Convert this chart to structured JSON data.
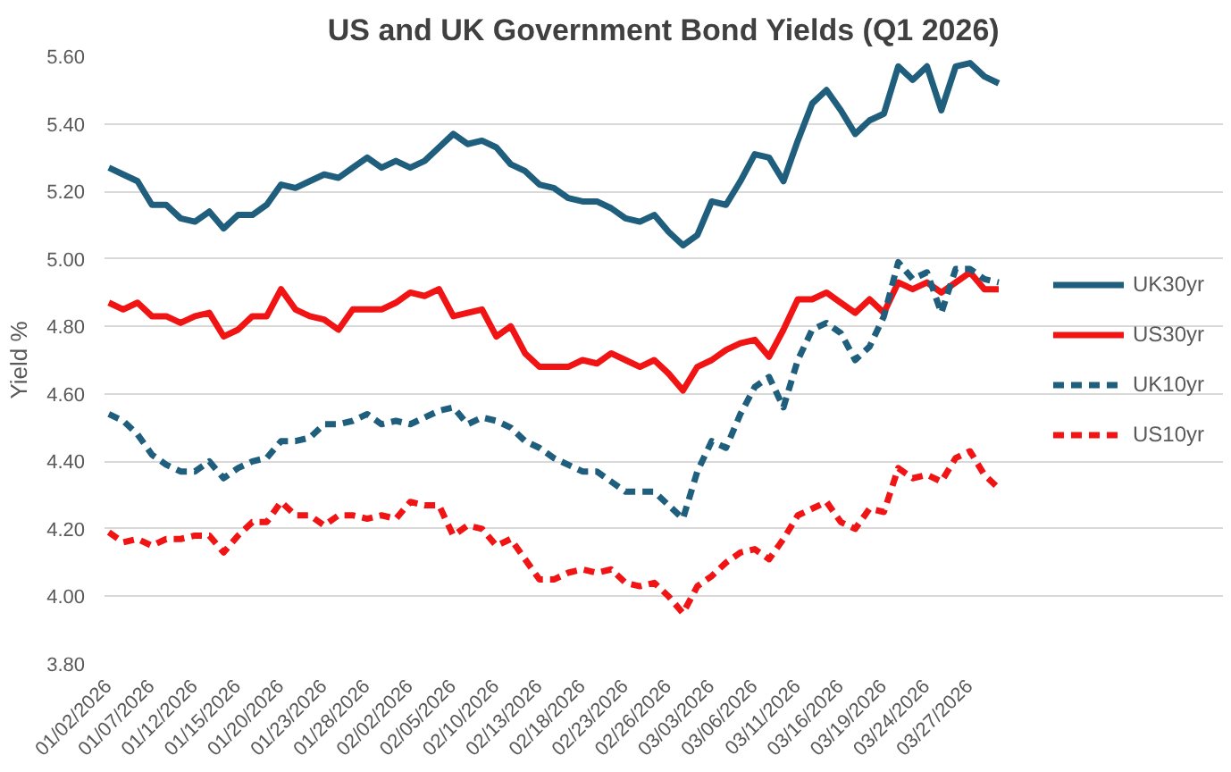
{
  "chart_data": {
    "type": "line",
    "title": "US and UK Government Bond Yields (Q1 2026)",
    "ylabel": "Yield %",
    "categories": [
      "01/02/2026",
      null,
      null,
      "01/07/2026",
      null,
      null,
      "01/12/2026",
      null,
      null,
      "01/15/2026",
      null,
      null,
      "01/20/2026",
      null,
      null,
      "01/23/2026",
      null,
      null,
      "01/28/2026",
      null,
      null,
      "02/02/2026",
      null,
      null,
      "02/05/2026",
      null,
      null,
      "02/10/2026",
      null,
      null,
      "02/13/2026",
      null,
      null,
      "02/18/2026",
      null,
      null,
      "02/23/2026",
      null,
      null,
      "02/26/2026",
      null,
      null,
      "03/03/2026",
      null,
      null,
      "03/06/2026",
      null,
      null,
      "03/11/2026",
      null,
      null,
      "03/16/2026",
      null,
      null,
      "03/19/2026",
      null,
      null,
      "03/24/2026",
      null,
      null,
      "03/27/2026",
      null,
      null
    ],
    "series": [
      {
        "name": "UK30yr",
        "color": "#1f5f7d",
        "line_style": "solid",
        "values": [
          5.27,
          5.25,
          5.23,
          5.16,
          5.16,
          5.12,
          5.11,
          5.14,
          5.09,
          5.13,
          5.13,
          5.16,
          5.22,
          5.21,
          5.23,
          5.25,
          5.24,
          5.27,
          5.3,
          5.27,
          5.29,
          5.27,
          5.29,
          5.33,
          5.37,
          5.34,
          5.35,
          5.33,
          5.28,
          5.26,
          5.22,
          5.21,
          5.18,
          5.17,
          5.17,
          5.15,
          5.12,
          5.11,
          5.13,
          5.08,
          5.04,
          5.07,
          5.17,
          5.16,
          5.23,
          5.31,
          5.3,
          5.23,
          5.35,
          5.46,
          5.5,
          5.44,
          5.37,
          5.41,
          5.43,
          5.57,
          5.53,
          5.57,
          5.44,
          5.57,
          5.58,
          5.54,
          5.52
        ]
      },
      {
        "name": "US30yr",
        "color": "#f01414",
        "line_style": "solid",
        "values": [
          4.87,
          4.85,
          4.87,
          4.83,
          4.83,
          4.81,
          4.83,
          4.84,
          4.77,
          4.79,
          4.83,
          4.83,
          4.91,
          4.85,
          4.83,
          4.82,
          4.79,
          4.85,
          4.85,
          4.85,
          4.87,
          4.9,
          4.89,
          4.91,
          4.83,
          4.84,
          4.85,
          4.77,
          4.8,
          4.72,
          4.68,
          4.68,
          4.68,
          4.7,
          4.69,
          4.72,
          4.7,
          4.68,
          4.7,
          4.66,
          4.61,
          4.68,
          4.7,
          4.73,
          4.75,
          4.76,
          4.71,
          4.79,
          4.88,
          4.88,
          4.9,
          4.87,
          4.84,
          4.88,
          4.84,
          4.93,
          4.91,
          4.93,
          4.9,
          4.93,
          4.96,
          4.91,
          4.91
        ]
      },
      {
        "name": "UK10yr",
        "color": "#1f5f7d",
        "line_style": "dashed",
        "values": [
          4.54,
          4.52,
          4.48,
          4.42,
          4.39,
          4.37,
          4.37,
          4.4,
          4.35,
          4.38,
          4.4,
          4.41,
          4.46,
          4.46,
          4.47,
          4.51,
          4.51,
          4.52,
          4.54,
          4.51,
          4.52,
          4.51,
          4.53,
          4.55,
          4.56,
          4.51,
          4.53,
          4.52,
          4.5,
          4.46,
          4.44,
          4.41,
          4.39,
          4.37,
          4.37,
          4.34,
          4.31,
          4.31,
          4.31,
          4.27,
          4.23,
          4.37,
          4.46,
          4.44,
          4.54,
          4.62,
          4.65,
          4.56,
          4.7,
          4.79,
          4.81,
          4.78,
          4.7,
          4.74,
          4.83,
          4.99,
          4.94,
          4.96,
          4.84,
          4.97,
          4.97,
          4.94,
          4.93
        ]
      },
      {
        "name": "US10yr",
        "color": "#f01414",
        "line_style": "dashed",
        "values": [
          4.19,
          4.16,
          4.17,
          4.15,
          4.17,
          4.17,
          4.18,
          4.18,
          4.13,
          4.18,
          4.22,
          4.22,
          4.28,
          4.24,
          4.24,
          4.21,
          4.24,
          4.24,
          4.23,
          4.24,
          4.23,
          4.28,
          4.27,
          4.27,
          4.18,
          4.21,
          4.2,
          4.15,
          4.17,
          4.11,
          4.05,
          4.05,
          4.07,
          4.08,
          4.07,
          4.08,
          4.04,
          4.03,
          4.04,
          4.0,
          3.95,
          4.03,
          4.06,
          4.1,
          4.13,
          4.14,
          4.11,
          4.17,
          4.24,
          4.26,
          4.28,
          4.22,
          4.2,
          4.26,
          4.25,
          4.38,
          4.35,
          4.36,
          4.34,
          4.41,
          4.43,
          4.36,
          4.32
        ]
      }
    ],
    "ylim": [
      3.8,
      5.6
    ],
    "yticks": [
      {
        "value": 3.8,
        "label": "3.80"
      },
      {
        "value": 4.0,
        "label": "4.00"
      },
      {
        "value": 4.2,
        "label": "4.20"
      },
      {
        "value": 4.4,
        "label": "4.40"
      },
      {
        "value": 4.6,
        "label": "4.60"
      },
      {
        "value": 4.8,
        "label": "4.80"
      },
      {
        "value": 5.0,
        "label": "5.00"
      },
      {
        "value": 5.2,
        "label": "5.20"
      },
      {
        "value": 5.4,
        "label": "5.40"
      },
      {
        "value": 5.6,
        "label": "5.60"
      }
    ],
    "grid": "y",
    "legend": "right",
    "marker": "none"
  }
}
